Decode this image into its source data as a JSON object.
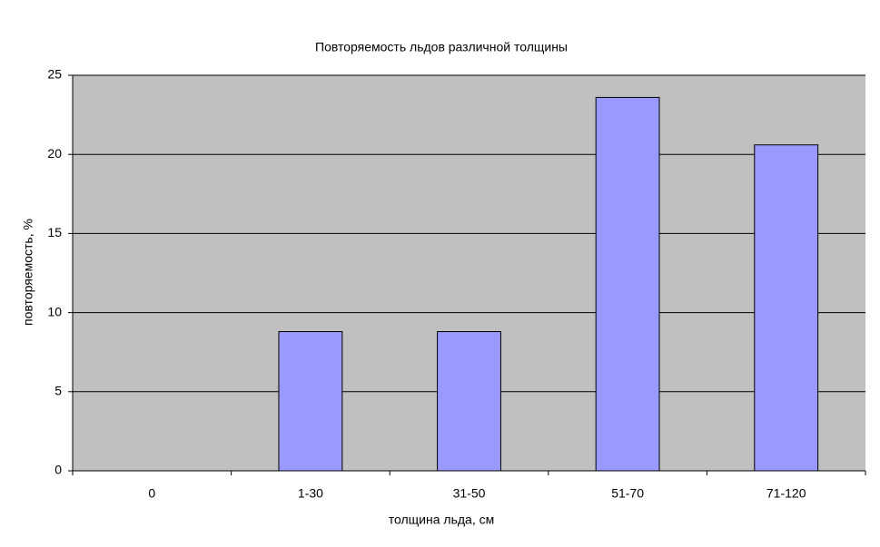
{
  "chart_data": {
    "type": "bar",
    "title": "Повторяемость льдов различной толщины",
    "x_label": "толщина льда, см",
    "y_label": "повторяемость, %",
    "categories": [
      "0",
      "1-30",
      "31-50",
      "51-70",
      "71-120"
    ],
    "values": [
      0,
      8.8,
      8.8,
      23.6,
      20.6
    ],
    "color": "#9999ff",
    "ylim": [
      0,
      25
    ],
    "yticks": [
      0,
      5,
      10,
      15,
      20,
      25
    ],
    "grid": true
  }
}
